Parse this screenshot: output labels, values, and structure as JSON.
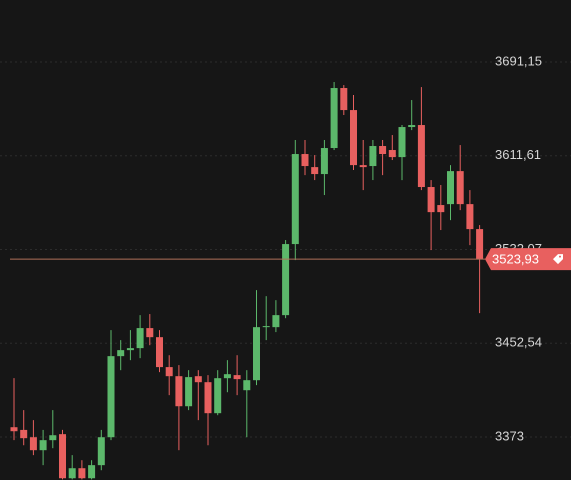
{
  "chart_data": {
    "type": "candlestick",
    "open": [
      3381.3,
      3379.0,
      3372.8,
      3361.8,
      3370.3,
      3375.4,
      3338.0,
      3346.5,
      3338.0,
      3349.1,
      3372.8,
      3441.6,
      3446.7,
      3448.4,
      3465.4,
      3457.7,
      3432.3,
      3424.6,
      3399.1,
      3424.6,
      3419.5,
      3393.2,
      3422.9,
      3425.5,
      3412.7,
      3421.2,
      3466.2,
      3466.2,
      3476.4,
      3536.7,
      3613.1,
      3602.0,
      3596.1,
      3618.2,
      3669.1,
      3650.4,
      3603.7,
      3602.9,
      3619.9,
      3616.5,
      3610.5,
      3636.0,
      3637.7,
      3585.1,
      3569.8,
      3570.6,
      3598.6,
      3570.6,
      3549.4
    ],
    "high": [
      3422.9,
      3395.8,
      3387.3,
      3379.0,
      3395.8,
      3379.0,
      3357.6,
      3353.3,
      3353.3,
      3379.0,
      3463.7,
      3455.2,
      3463.7,
      3476.4,
      3477.3,
      3463.7,
      3442.4,
      3434.0,
      3429.7,
      3429.7,
      3425.5,
      3429.7,
      3438.2,
      3442.4,
      3429.7,
      3497.6,
      3492.5,
      3489.1,
      3540.1,
      3625.0,
      3625.0,
      3612.2,
      3625.0,
      3674.2,
      3671.6,
      3663.2,
      3625.0,
      3625.0,
      3625.0,
      3629.2,
      3637.7,
      3658.9,
      3669.9,
      3591.0,
      3586.8,
      3603.7,
      3620.7,
      3582.5,
      3552.8
    ],
    "low": [
      3370.3,
      3366.0,
      3357.6,
      3349.1,
      3363.5,
      3337.0,
      3337.0,
      3337.0,
      3337.0,
      3344.8,
      3370.3,
      3429.7,
      3438.2,
      3439.9,
      3450.9,
      3428.0,
      3408.5,
      3361.8,
      3395.8,
      3387.3,
      3366.0,
      3391.5,
      3411.0,
      3408.5,
      3372.8,
      3417.0,
      3455.2,
      3462.0,
      3473.8,
      3523.1,
      3595.2,
      3591.0,
      3578.3,
      3616.5,
      3646.2,
      3599.5,
      3582.5,
      3591.0,
      3595.2,
      3608.0,
      3591.0,
      3633.4,
      3582.5,
      3531.6,
      3548.6,
      3557.0,
      3565.5,
      3535.8,
      3478.1
    ],
    "close": [
      3377.9,
      3372.0,
      3361.8,
      3370.3,
      3374.5,
      3338.0,
      3346.5,
      3338.0,
      3349.1,
      3372.8,
      3441.6,
      3446.7,
      3448.4,
      3465.4,
      3457.7,
      3432.3,
      3424.6,
      3399.1,
      3423.8,
      3419.5,
      3393.2,
      3422.9,
      3426.3,
      3422.1,
      3421.2,
      3466.2,
      3467.1,
      3476.4,
      3536.7,
      3613.1,
      3602.9,
      3596.1,
      3618.2,
      3669.1,
      3650.4,
      3603.7,
      3602.0,
      3619.9,
      3613.1,
      3610.5,
      3636.0,
      3637.7,
      3585.1,
      3563.8,
      3563.8,
      3598.6,
      3570.6,
      3549.4,
      3523.93
    ],
    "up_color": "#5cb86b",
    "down_color": "#e8605f",
    "ylim": [
      3336.5,
      3743.8
    ],
    "yticks": [
      {
        "value": 3373,
        "label": "3373"
      },
      {
        "value": 3452.54,
        "label": "3452,54"
      },
      {
        "value": 3532.07,
        "label": "3532,07"
      },
      {
        "value": 3611.61,
        "label": "3611,61"
      },
      {
        "value": 3691.15,
        "label": "3691,15"
      }
    ],
    "last_price": {
      "value": 3523.93,
      "label": "3523,93"
    },
    "grid": true
  }
}
